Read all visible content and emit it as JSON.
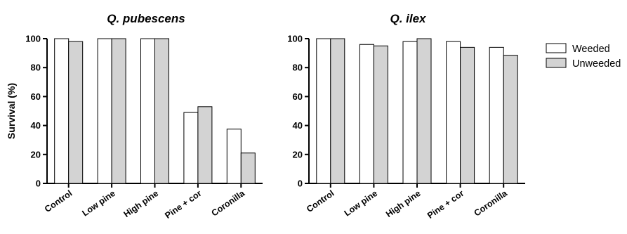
{
  "chart_data": [
    {
      "type": "bar",
      "title": "Q. pubescens",
      "ylabel": "Survival (%)",
      "xlabel": "",
      "ylim": [
        0,
        100
      ],
      "yticks": [
        0,
        20,
        40,
        60,
        80,
        100
      ],
      "categories": [
        "Control",
        "Low pine",
        "High pine",
        "Pine + cor",
        "Coronilla"
      ],
      "series": [
        {
          "name": "Weeded",
          "color": "#ffffff",
          "values": [
            100,
            100,
            100,
            49,
            37.5
          ]
        },
        {
          "name": "Unweeded",
          "color": "#d3d3d3",
          "values": [
            98,
            100,
            100,
            53,
            21
          ]
        }
      ]
    },
    {
      "type": "bar",
      "title": "Q. ilex",
      "ylabel": "",
      "xlabel": "",
      "ylim": [
        0,
        100
      ],
      "yticks": [
        0,
        20,
        40,
        60,
        80,
        100
      ],
      "categories": [
        "Control",
        "Low pine",
        "High pine",
        "Pine + cor",
        "Coronilla"
      ],
      "series": [
        {
          "name": "Weeded",
          "color": "#ffffff",
          "values": [
            100,
            96,
            98,
            98,
            94
          ]
        },
        {
          "name": "Unweeded",
          "color": "#d3d3d3",
          "values": [
            100,
            95,
            100,
            94,
            88.5
          ]
        }
      ]
    }
  ],
  "legend": {
    "position": "right",
    "items": [
      {
        "label": "Weeded",
        "color": "#ffffff"
      },
      {
        "label": "Unweeded",
        "color": "#d3d3d3"
      }
    ]
  }
}
